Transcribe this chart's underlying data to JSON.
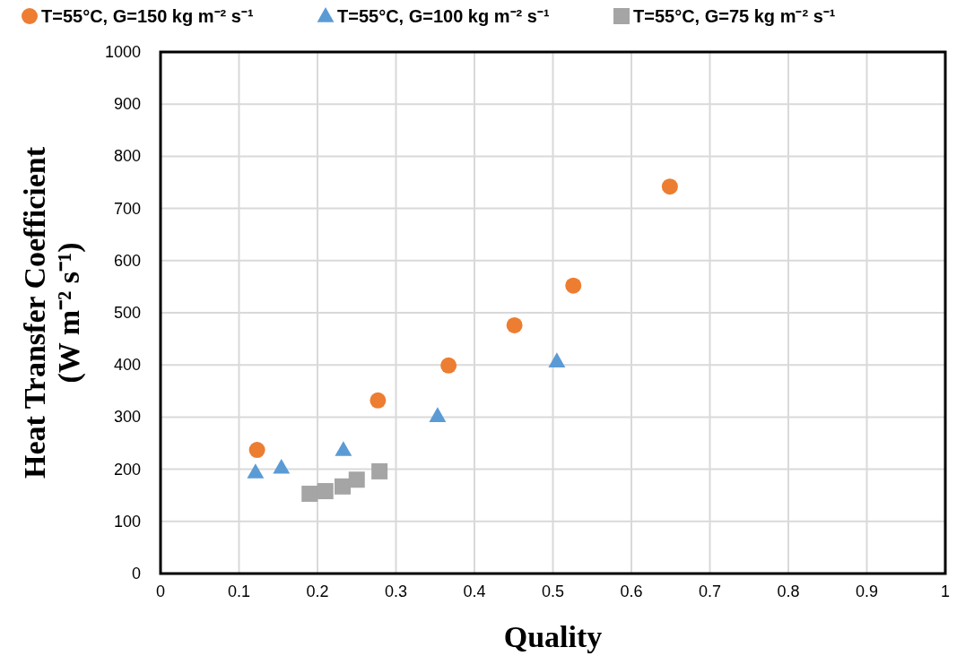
{
  "chart_data": {
    "type": "scatter",
    "xlabel": "Quality",
    "ylabel": "Heat Transfer Coefficient (W m⁻² s⁻¹)",
    "xlim": [
      0,
      1
    ],
    "xticks": [
      0,
      0.1,
      0.2,
      0.3,
      0.4,
      0.5,
      0.6,
      0.7,
      0.8,
      0.9,
      1
    ],
    "ylim": [
      0,
      1000
    ],
    "yticks": [
      0,
      100,
      200,
      300,
      400,
      500,
      600,
      700,
      800,
      900,
      1000
    ],
    "grid": true,
    "legend": "top",
    "series": [
      {
        "name": "T=55°C, G=150 kg m⁻² s⁻¹",
        "color": "#ed7d31",
        "marker": "circle",
        "x": [
          0.123,
          0.277,
          0.367,
          0.451,
          0.526,
          0.649
        ],
        "values": [
          237,
          332,
          399,
          476,
          552,
          742
        ]
      },
      {
        "name": "T=55°C, G=100 kg m⁻² s⁻¹",
        "color": "#5b9bd5",
        "marker": "triangle",
        "x": [
          0.121,
          0.154,
          0.233,
          0.353,
          0.505
        ],
        "values": [
          194,
          203,
          237,
          302,
          407
        ]
      },
      {
        "name": "T=55°C, G=75 kg m⁻² s⁻¹",
        "color": "#a5a5a5",
        "marker": "square",
        "x": [
          0.19,
          0.21,
          0.232,
          0.25,
          0.279
        ],
        "values": [
          153,
          158,
          167,
          180,
          196
        ]
      }
    ]
  }
}
